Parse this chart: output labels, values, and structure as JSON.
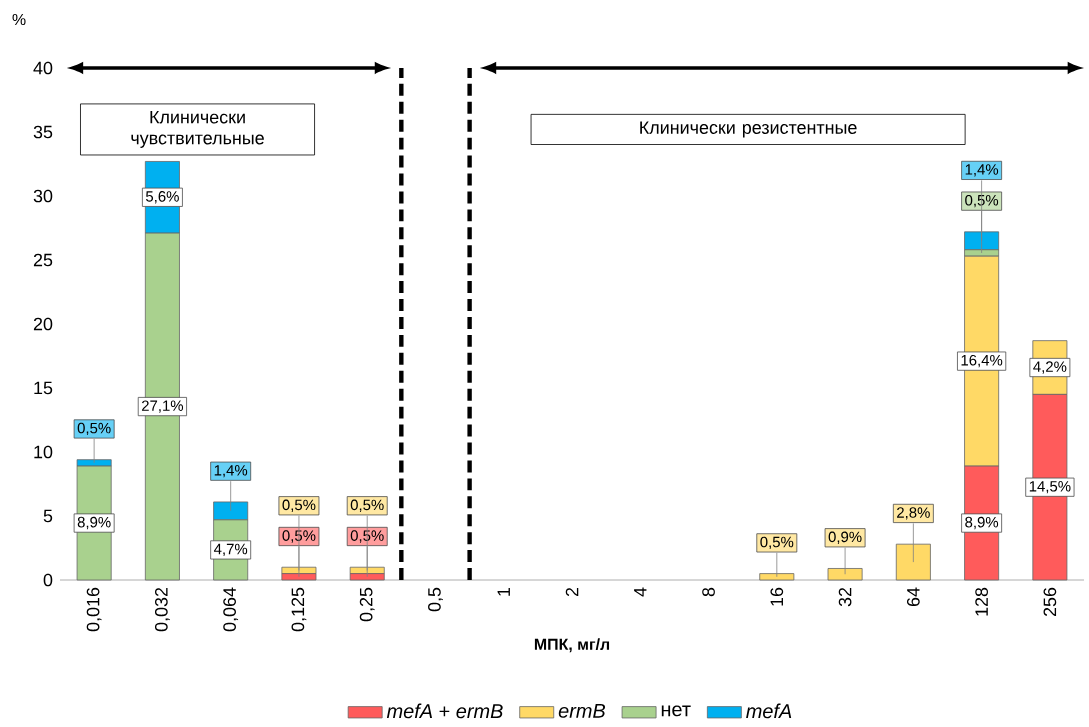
{
  "chart_data": {
    "type": "bar",
    "stacked": true,
    "categories": [
      "0,016",
      "0,032",
      "0,064",
      "0,125",
      "0,25",
      "0,5",
      "1",
      "2",
      "4",
      "8",
      "16",
      "32",
      "64",
      "128",
      "256"
    ],
    "series": [
      {
        "name": "*mefA* + *ermB*",
        "color": "#ff5b5b",
        "values": [
          0,
          0,
          0,
          0.5,
          0.5,
          0,
          0,
          0,
          0,
          0,
          0,
          0,
          0,
          8.9,
          14.5
        ],
        "value_labels": [
          null,
          null,
          null,
          "0,5%",
          "0,5%",
          null,
          null,
          null,
          null,
          null,
          null,
          null,
          null,
          "8,9%",
          "14,5%"
        ]
      },
      {
        "name": "*ermB*",
        "color": "#ffd966",
        "values": [
          0,
          0,
          0,
          0.5,
          0.5,
          0,
          0,
          0,
          0,
          0,
          0.5,
          0.9,
          2.8,
          16.4,
          4.2
        ],
        "value_labels": [
          null,
          null,
          null,
          "0,5%",
          "0,5%",
          null,
          null,
          null,
          null,
          null,
          "0,5%",
          "0,9%",
          "2,8%",
          "16,4%",
          "4,2%"
        ]
      },
      {
        "name": "нет",
        "color": "#a9d18e",
        "values": [
          8.9,
          27.1,
          4.7,
          0,
          0,
          0,
          0,
          0,
          0,
          0,
          0,
          0,
          0,
          0.5,
          0
        ],
        "value_labels": [
          "8,9%",
          "27,1%",
          "4,7%",
          null,
          null,
          null,
          null,
          null,
          null,
          null,
          null,
          null,
          null,
          "0,5%",
          null
        ]
      },
      {
        "name": "*mefA*",
        "color": "#00b0f0",
        "values": [
          0.5,
          5.6,
          1.4,
          0,
          0,
          0,
          0,
          0,
          0,
          0,
          0,
          0,
          0,
          1.4,
          0
        ],
        "value_labels": [
          "0,5%",
          "5,6%",
          "1,4%",
          null,
          null,
          null,
          null,
          null,
          null,
          null,
          null,
          null,
          null,
          "1,4%",
          null
        ]
      }
    ],
    "ylim": [
      0,
      40
    ],
    "yticks": [
      0,
      5,
      10,
      15,
      20,
      25,
      30,
      35,
      40
    ],
    "xlabel": "МПК, мг/л",
    "ylabel": "%",
    "annotations": [
      "Клинически чувствительные",
      "Клинически резистентные"
    ],
    "legend": "bottom"
  }
}
